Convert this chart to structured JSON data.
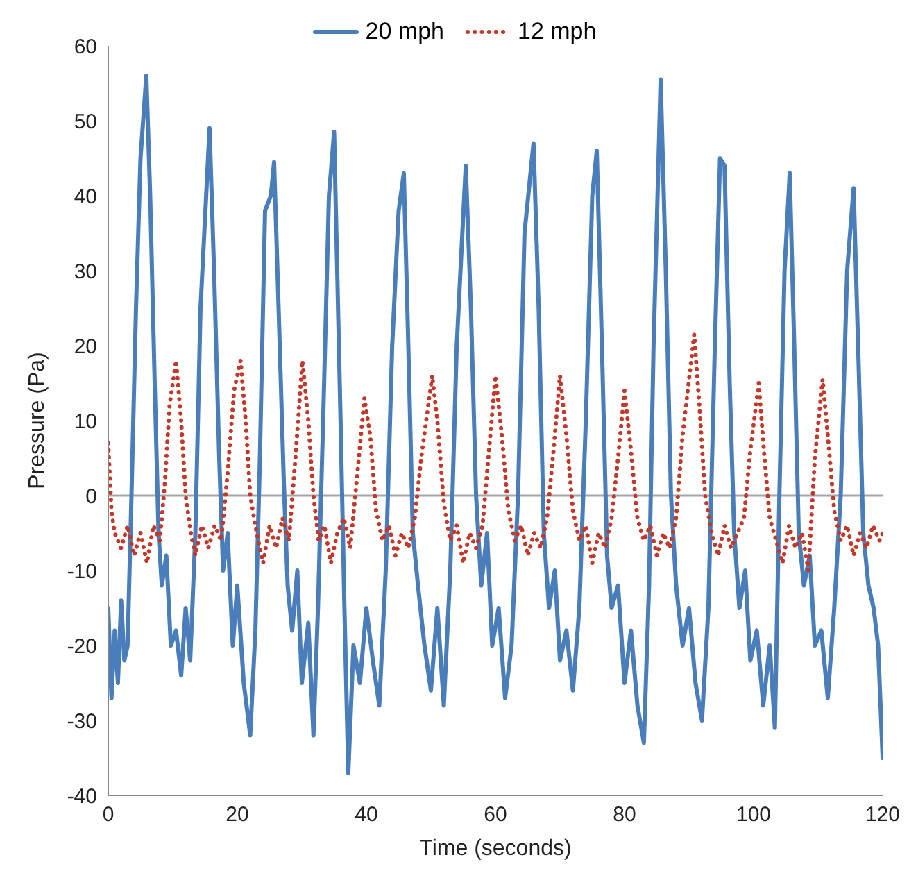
{
  "chart_data": {
    "type": "line",
    "xlabel": "Time (seconds)",
    "ylabel": "Pressure (Pa)",
    "xlim": [
      0,
      120
    ],
    "xticks": [
      0,
      20,
      40,
      60,
      80,
      100,
      120
    ],
    "ylim": [
      -40,
      60
    ],
    "yticks": [
      -40,
      -30,
      -20,
      -10,
      0,
      10,
      20,
      30,
      40,
      50,
      60
    ],
    "grid": false,
    "legend": "top",
    "marker": "none",
    "ref_lines": [
      {
        "axis": "y",
        "value": 0,
        "color": "#a6a6a6"
      }
    ],
    "series": [
      {
        "name": "20 mph",
        "color": "#4a7ebb",
        "line_style": "solid",
        "x": [
          0,
          0.5,
          1,
          1.5,
          2,
          2.5,
          3,
          3.6,
          4.3,
          5,
          5.9,
          6.5,
          7.2,
          7.8,
          8.3,
          9,
          9.7,
          10.5,
          11.3,
          12,
          12.7,
          13.5,
          14.3,
          15.7,
          16.4,
          17.2,
          17.8,
          18.5,
          19.3,
          20,
          21,
          22,
          22.8,
          23.5,
          24.3,
          25.2,
          25.7,
          26.4,
          27.2,
          27.8,
          28.5,
          29.3,
          30,
          31,
          31.8,
          32.5,
          33.3,
          34.2,
          35,
          36,
          36.6,
          37.2,
          38,
          39,
          40,
          41,
          42,
          43,
          44,
          45,
          45.8,
          46.5,
          47.2,
          48,
          49,
          50,
          51,
          52,
          53,
          54,
          55.4,
          56.2,
          57,
          57.8,
          58.7,
          59.5,
          60.5,
          61.5,
          62.5,
          63.5,
          64.5,
          65.9,
          66.7,
          67.5,
          68.3,
          69.2,
          70,
          71,
          72,
          73,
          74,
          75,
          75.7,
          76.5,
          77.3,
          78,
          79,
          80,
          81,
          82,
          83,
          83.8,
          84.5,
          85.6,
          86.4,
          87.2,
          88,
          89,
          90,
          91,
          92,
          93,
          94,
          94.8,
          95.5,
          96.3,
          97,
          97.8,
          98.7,
          99.5,
          100.5,
          101.5,
          102.5,
          103.3,
          104,
          104.8,
          105.6,
          106.3,
          107,
          107.8,
          108.7,
          109.5,
          110.5,
          111.5,
          112.5,
          113.5,
          114.5,
          115.5,
          116.2,
          117,
          117.8,
          118.6,
          119.3,
          120
        ],
        "values": [
          -15,
          -27,
          -18,
          -25,
          -14,
          -22,
          -20,
          0,
          25,
          45,
          56,
          40,
          15,
          -5,
          -12,
          -8,
          -20,
          -18,
          -24,
          -15,
          -22,
          -5,
          25,
          49,
          30,
          5,
          -10,
          -5,
          -20,
          -12,
          -25,
          -32,
          -18,
          5,
          38,
          40,
          44.5,
          25,
          2,
          -12,
          -18,
          -10,
          -25,
          -17,
          -32,
          -15,
          10,
          40,
          48.5,
          10,
          -15,
          -37,
          -20,
          -25,
          -15,
          -22,
          -28,
          -10,
          20,
          38,
          43,
          20,
          -5,
          -12,
          -20,
          -26,
          -15,
          -28,
          -10,
          20,
          44,
          25,
          0,
          -12,
          -5,
          -20,
          -15,
          -27,
          -20,
          0,
          35,
          47,
          25,
          -5,
          -15,
          -10,
          -22,
          -18,
          -26,
          -15,
          10,
          40,
          46,
          20,
          -8,
          -15,
          -12,
          -25,
          -18,
          -28,
          -33,
          -12,
          20,
          55.5,
          30,
          0,
          -12,
          -20,
          -15,
          -25,
          -30,
          -15,
          20,
          45,
          44,
          15,
          -5,
          -15,
          -10,
          -22,
          -18,
          -28,
          -20,
          -31,
          0,
          30,
          43,
          20,
          -5,
          -12,
          -8,
          -20,
          -18,
          -27,
          -15,
          0,
          30,
          41,
          20,
          -5,
          -12,
          -15,
          -20,
          -35
        ]
      },
      {
        "name": "12 mph",
        "color": "#c0392b",
        "line_style": "dotted",
        "x": [
          0,
          0.5,
          1,
          2,
          3,
          4,
          5,
          6,
          7,
          8,
          8.8,
          9.5,
          10.5,
          11.3,
          12,
          12.8,
          13.5,
          14.5,
          15.5,
          16.5,
          17.5,
          18.5,
          19.5,
          20.5,
          21.3,
          22,
          23,
          24,
          25,
          26,
          27,
          28,
          29,
          30.1,
          31,
          31.8,
          32.6,
          33.5,
          34.5,
          35.5,
          36.5,
          37.5,
          38.5,
          39.7,
          40.6,
          41.5,
          42.5,
          43.5,
          44.5,
          45.5,
          46.5,
          47.5,
          48.5,
          50.2,
          51,
          52,
          53,
          54,
          55,
          56,
          57,
          58,
          59,
          60,
          61,
          62,
          63,
          64,
          65,
          66,
          67,
          68,
          69,
          70,
          71,
          72,
          73,
          74,
          75,
          76,
          77,
          78,
          79,
          80,
          81,
          82,
          83,
          84,
          85,
          86,
          87,
          88,
          89,
          90.8,
          91.6,
          92.5,
          93.5,
          94.5,
          95.5,
          96.5,
          97.5,
          98.5,
          99.5,
          100.8,
          101.6,
          102.5,
          103.5,
          104.5,
          105.5,
          106.5,
          107.5,
          108.5,
          109.5,
          110.7,
          111.5,
          112.5,
          113.5,
          114.5,
          115.5,
          116.5,
          117.5,
          118.5,
          119.5,
          120
        ],
        "values": [
          7,
          -2,
          -5,
          -7,
          -4,
          -8,
          -5,
          -9,
          -4,
          -6,
          2,
          12,
          18,
          10,
          0,
          -5,
          -8,
          -4,
          -7,
          -4,
          -6,
          3,
          14,
          18,
          10,
          0,
          -5,
          -9,
          -4,
          -7,
          -3,
          -6,
          5,
          18,
          10,
          0,
          -6,
          -4,
          -9,
          -5,
          -3,
          -7,
          2,
          13,
          8,
          -2,
          -6,
          -4,
          -8,
          -5,
          -7,
          -3,
          5,
          16,
          10,
          -1,
          -6,
          -4,
          -9,
          -5,
          -7,
          -4,
          6,
          16,
          8,
          -2,
          -6,
          -4,
          -8,
          -5,
          -7,
          -3,
          6,
          16,
          8,
          -2,
          -6,
          -4,
          -9,
          -5,
          -7,
          -3,
          5,
          14,
          6,
          -3,
          -6,
          -4,
          -8,
          -5,
          -7,
          -3,
          8,
          21.5,
          12,
          0,
          -5,
          -8,
          -4,
          -7,
          -5,
          -3,
          6,
          15,
          6,
          -3,
          -6,
          -9,
          -4,
          -7,
          -5,
          -10,
          5,
          15.5,
          8,
          -2,
          -6,
          -4,
          -8,
          -5,
          -7,
          -4,
          -6,
          -5
        ]
      }
    ]
  }
}
